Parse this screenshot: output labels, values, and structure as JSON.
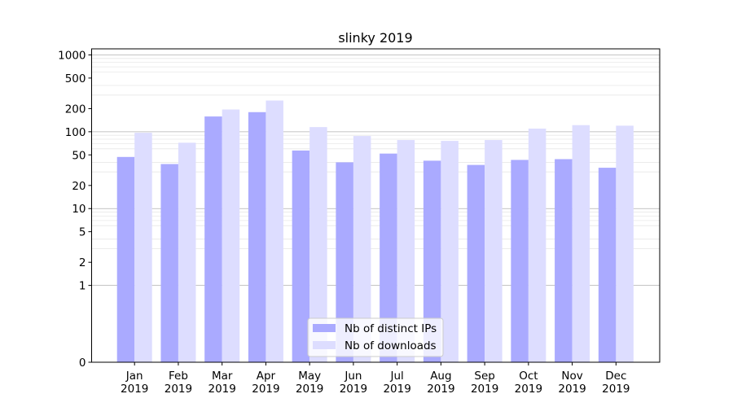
{
  "chart_data": {
    "type": "bar",
    "title": "slinky 2019",
    "xlabel": "",
    "ylabel": "",
    "yscale": "symlog",
    "ylim": [
      0,
      1200
    ],
    "yticks": [
      0,
      1,
      2,
      5,
      10,
      20,
      50,
      100,
      200,
      500,
      1000
    ],
    "ytick_labels": [
      "0",
      "1",
      "2",
      "5",
      "10",
      "20",
      "50",
      "100",
      "200",
      "500",
      "1000"
    ],
    "grid": true,
    "legend_position": "bottom-center",
    "categories": [
      [
        "Jan",
        "2019"
      ],
      [
        "Feb",
        "2019"
      ],
      [
        "Mar",
        "2019"
      ],
      [
        "Apr",
        "2019"
      ],
      [
        "May",
        "2019"
      ],
      [
        "Jun",
        "2019"
      ],
      [
        "Jul",
        "2019"
      ],
      [
        "Aug",
        "2019"
      ],
      [
        "Sep",
        "2019"
      ],
      [
        "Oct",
        "2019"
      ],
      [
        "Nov",
        "2019"
      ],
      [
        "Dec",
        "2019"
      ]
    ],
    "series": [
      {
        "name": "Nb of distinct IPs",
        "color": "#aaaaff",
        "values": [
          47,
          38,
          158,
          180,
          57,
          40,
          52,
          42,
          37,
          43,
          44,
          34
        ]
      },
      {
        "name": "Nb of downloads",
        "color": "#ddddff",
        "values": [
          97,
          72,
          195,
          255,
          115,
          88,
          78,
          76,
          78,
          110,
          122,
          120
        ]
      }
    ]
  }
}
